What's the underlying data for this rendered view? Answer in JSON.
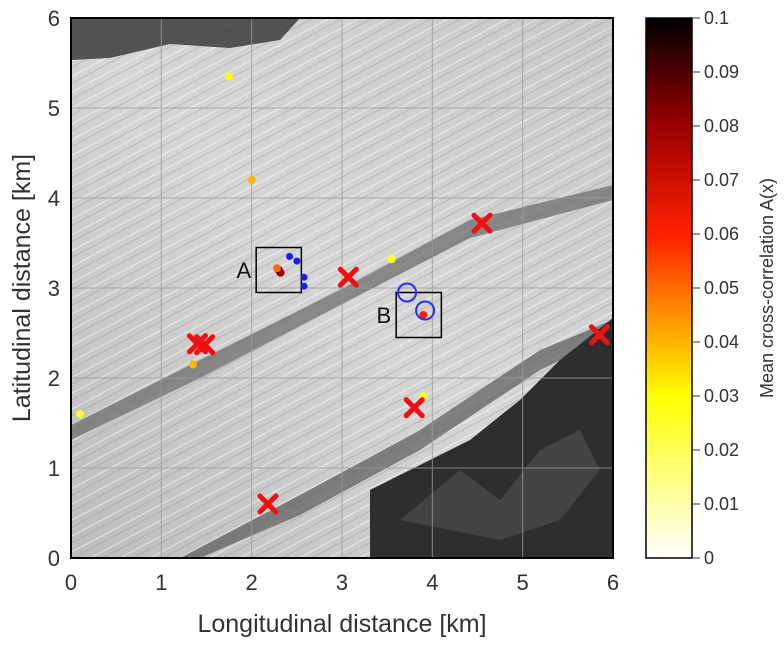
{
  "chart_data": {
    "type": "scatter",
    "xlabel": "Longitudinal distance [km]",
    "ylabel": "Latitudinal distance [km]",
    "xlim": [
      0,
      6
    ],
    "ylim": [
      0,
      6
    ],
    "xticks": [
      "0",
      "1",
      "2",
      "3",
      "4",
      "5",
      "6"
    ],
    "yticks": [
      "0",
      "1",
      "2",
      "3",
      "4",
      "5",
      "6"
    ],
    "grid": true,
    "background": "satellite image of glacier",
    "colorbar": {
      "label": "Mean cross-correlation A(x)",
      "range": [
        0,
        0.1
      ],
      "ticks": [
        "0",
        "0.01",
        "0.02",
        "0.03",
        "0.04",
        "0.05",
        "0.06",
        "0.07",
        "0.08",
        "0.09",
        "0.1"
      ],
      "colormap": "hot-reversed"
    },
    "correlation_points": [
      {
        "x": 1.75,
        "y": 5.35,
        "value": 0.03
      },
      {
        "x": 2.0,
        "y": 4.2,
        "value": 0.04
      },
      {
        "x": 2.3,
        "y": 3.2,
        "value": 0.1
      },
      {
        "x": 2.32,
        "y": 3.17,
        "value": 0.08
      },
      {
        "x": 2.28,
        "y": 3.22,
        "value": 0.05
      },
      {
        "x": 3.55,
        "y": 3.32,
        "value": 0.025
      },
      {
        "x": 3.9,
        "y": 2.7,
        "value": 0.06
      },
      {
        "x": 1.35,
        "y": 2.15,
        "value": 0.04
      },
      {
        "x": 0.1,
        "y": 1.6,
        "value": 0.025
      },
      {
        "x": 3.9,
        "y": 1.8,
        "value": 0.025
      }
    ],
    "blue_points": [
      {
        "x": 2.42,
        "y": 3.35
      },
      {
        "x": 2.5,
        "y": 3.3
      },
      {
        "x": 2.58,
        "y": 3.12
      },
      {
        "x": 2.58,
        "y": 3.02
      }
    ],
    "blue_circles": [
      {
        "x": 3.72,
        "y": 2.95
      },
      {
        "x": 3.92,
        "y": 2.75
      }
    ],
    "red_crosses": [
      {
        "x": 4.55,
        "y": 3.72
      },
      {
        "x": 3.07,
        "y": 3.12
      },
      {
        "x": 1.4,
        "y": 2.38
      },
      {
        "x": 1.48,
        "y": 2.37
      },
      {
        "x": 5.85,
        "y": 2.48
      },
      {
        "x": 3.8,
        "y": 1.67
      },
      {
        "x": 2.18,
        "y": 0.6
      }
    ],
    "boxes": [
      {
        "label": "A",
        "x0": 2.05,
        "x1": 2.55,
        "y0": 2.95,
        "y1": 3.45
      },
      {
        "label": "B",
        "x0": 3.6,
        "x1": 4.1,
        "y0": 2.45,
        "y1": 2.95
      }
    ]
  }
}
